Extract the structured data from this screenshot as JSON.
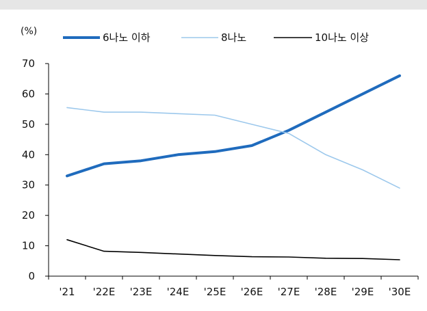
{
  "chart_data": {
    "type": "line",
    "title": "",
    "ylabel": "(%)",
    "xlabel": "",
    "categories": [
      "'21",
      "'22E",
      "'23E",
      "'24E",
      "'25E",
      "'26E",
      "'27E",
      "'28E",
      "'29E",
      "'30E"
    ],
    "ylim": [
      0,
      70
    ],
    "yticks": [
      0,
      10,
      20,
      30,
      40,
      50,
      60,
      70
    ],
    "grid": false,
    "legend_position": "top",
    "series": [
      {
        "name": "6나노 이하",
        "color": "#1f6bbd",
        "values": [
          33,
          37,
          38,
          40,
          41,
          43,
          48,
          54,
          60,
          66
        ]
      },
      {
        "name": "8나노",
        "color": "#9cc8ec",
        "values": [
          55.5,
          54,
          54,
          53.5,
          53,
          50,
          47,
          40,
          35,
          29
        ]
      },
      {
        "name": "10나노 이상",
        "color": "#000000",
        "values": [
          12,
          8.2,
          7.8,
          7.3,
          6.8,
          6.4,
          6.3,
          5.9,
          5.8,
          5.4
        ]
      }
    ]
  }
}
